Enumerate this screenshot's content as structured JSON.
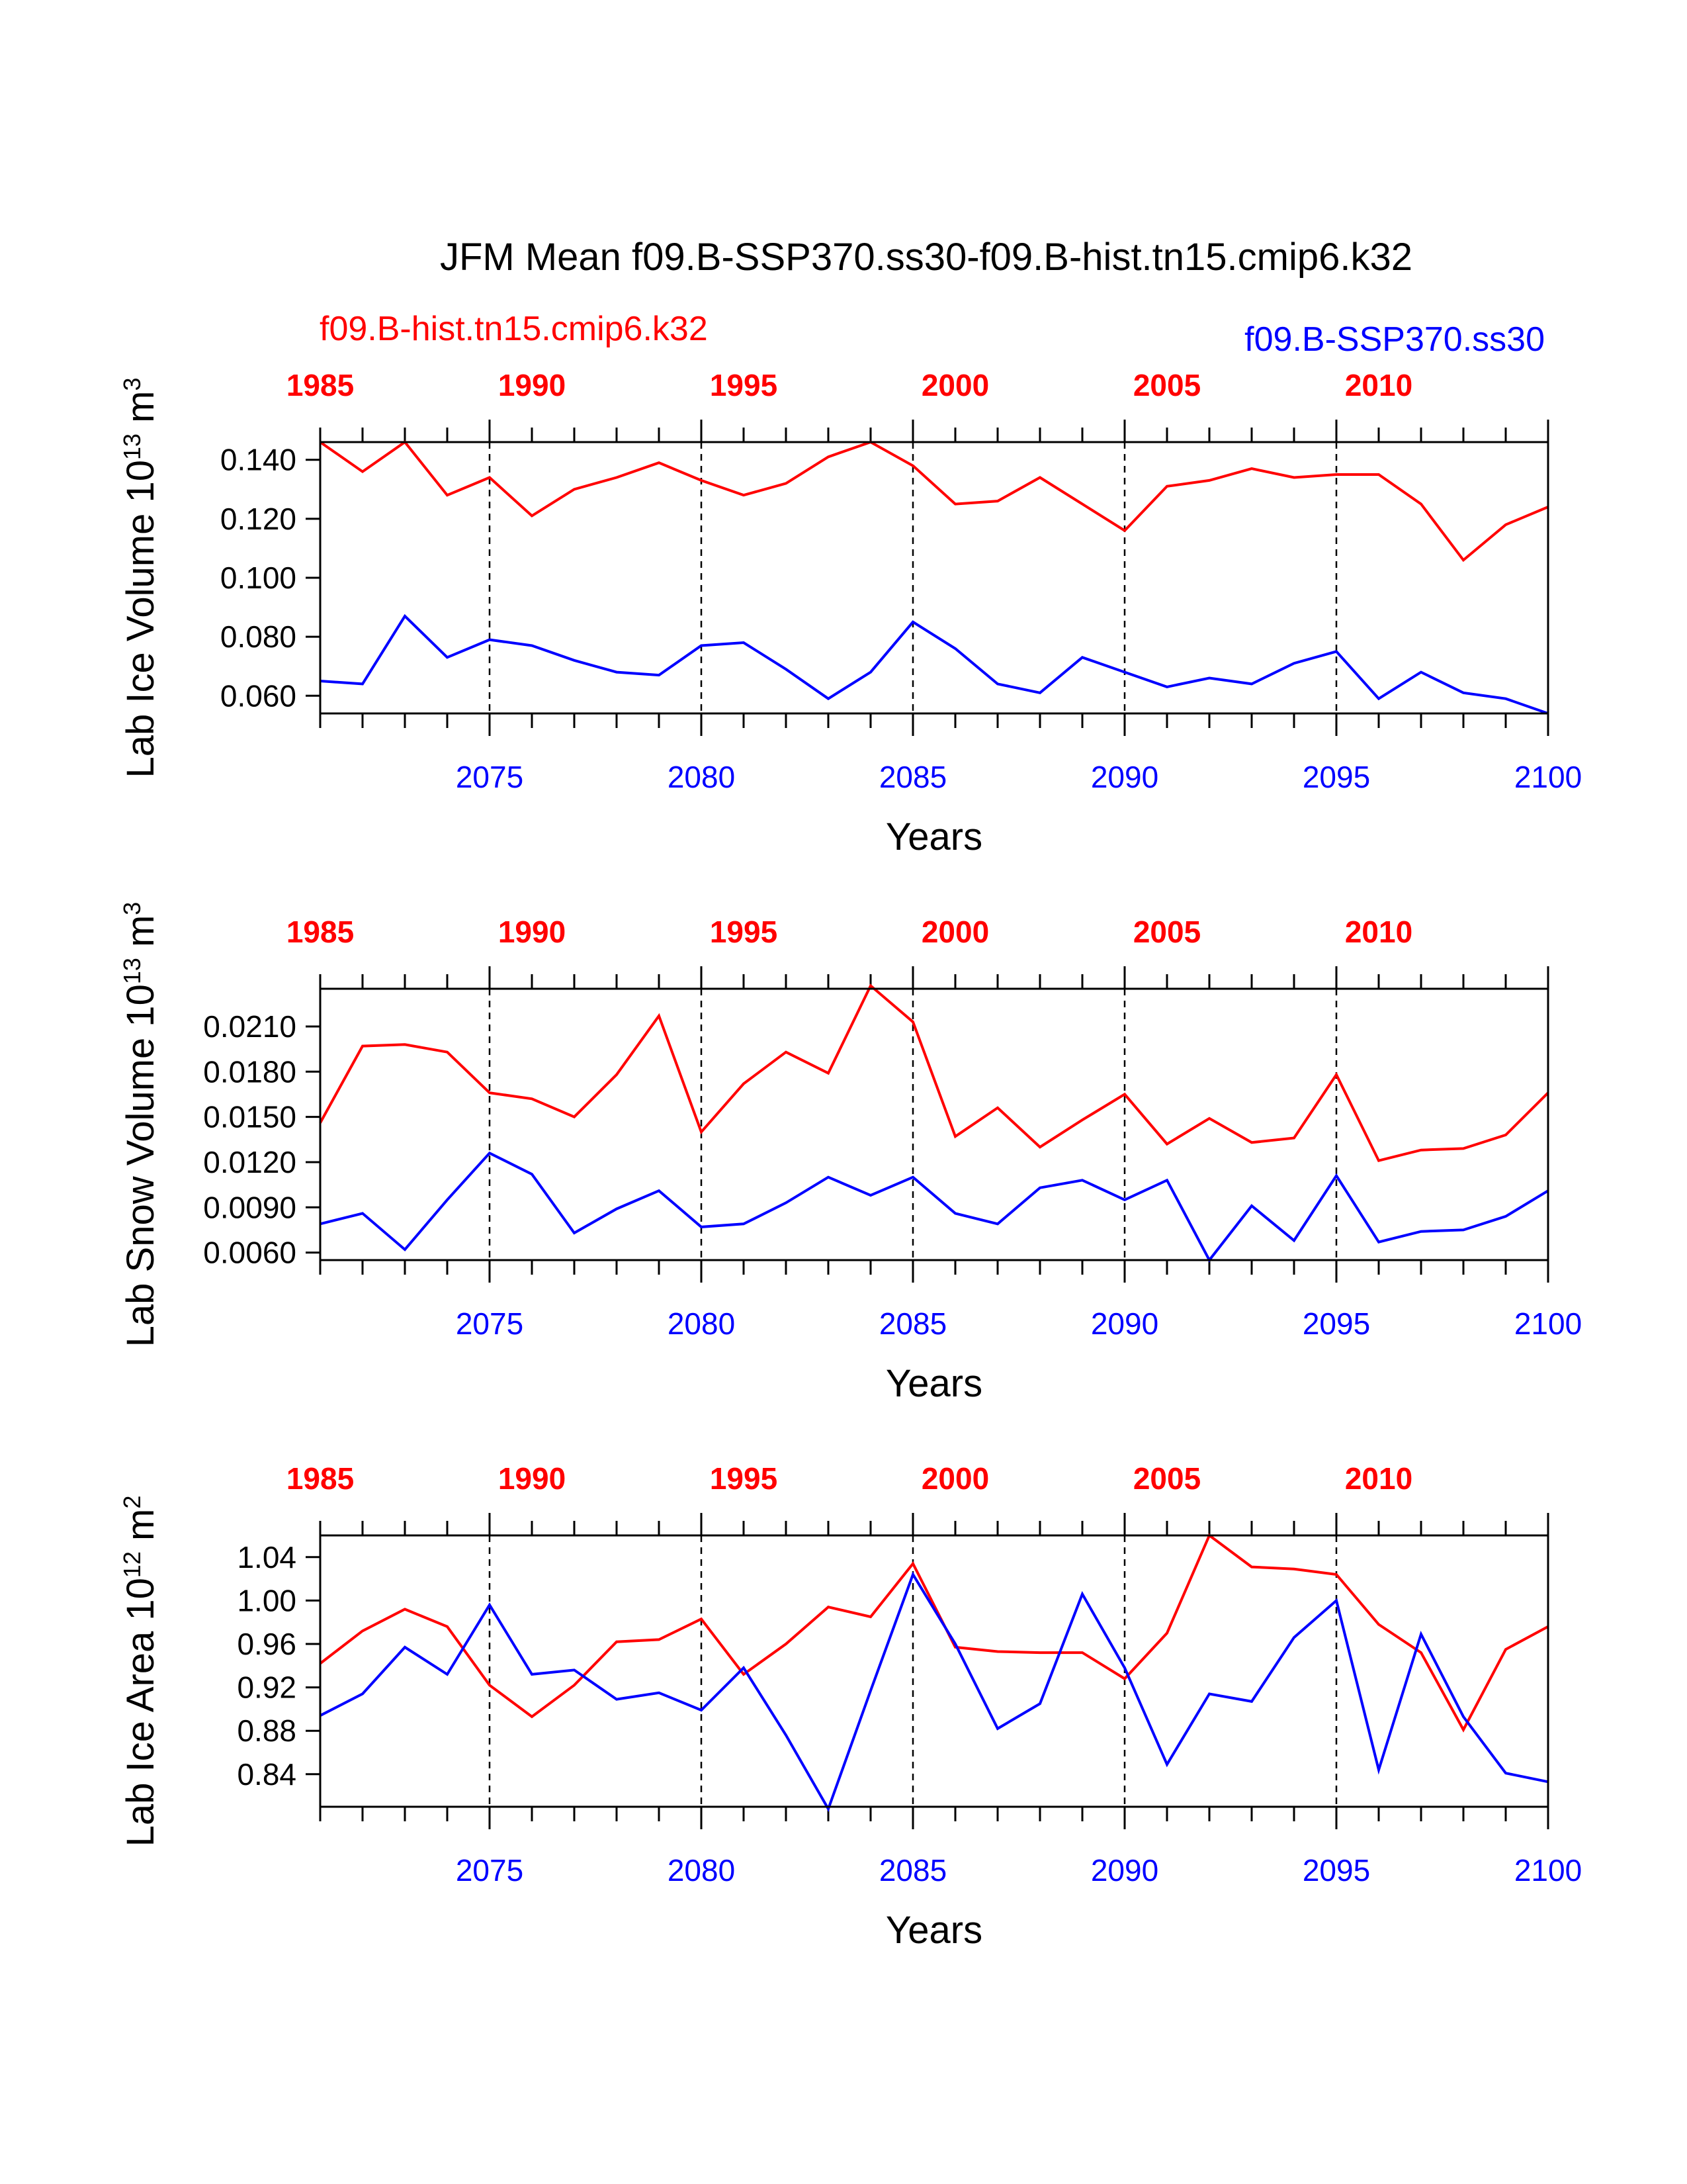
{
  "title": "JFM Mean f09.B-SSP370.ss30-f09.B-hist.tn15.cmip6.k32",
  "colors": {
    "hist": "#ff0000",
    "ssp": "#0000ff",
    "axis": "#000000"
  },
  "series_labels": {
    "hist": "f09.B-hist.tn15.cmip6.k32",
    "ssp": "f09.B-SSP370.ss30"
  },
  "chart_data": [
    {
      "type": "line",
      "ylabel": "Lab Ice Volume 10",
      "ylabel_exp": "13",
      "ylabel_unit": " m",
      "ylabel_unit_exp": "3",
      "xlabel": "Years",
      "x": [
        2071,
        2072,
        2073,
        2074,
        2075,
        2076,
        2077,
        2078,
        2079,
        2080,
        2081,
        2082,
        2083,
        2084,
        2085,
        2086,
        2087,
        2088,
        2089,
        2090,
        2091,
        2092,
        2093,
        2094,
        2095,
        2096,
        2097,
        2098,
        2099,
        2100
      ],
      "xlim": [
        2071,
        2100
      ],
      "ylim": [
        0.054,
        0.146
      ],
      "yticks": [
        0.06,
        0.08,
        0.1,
        0.12,
        0.14
      ],
      "ytick_labels": [
        "0.060",
        "0.080",
        "0.100",
        "0.120",
        "0.140"
      ],
      "bottom_ticks": [
        2075,
        2080,
        2085,
        2090,
        2095,
        2100
      ],
      "bottom_tick_labels": [
        "2075",
        "2080",
        "2085",
        "2090",
        "2095",
        "2100"
      ],
      "top_ticks": [
        1985,
        1990,
        1995,
        2000,
        2005,
        2010
      ],
      "top_tick_labels": [
        "1985",
        "1990",
        "1995",
        "2000",
        "2005",
        "2010"
      ],
      "top_xlim": [
        1985,
        2014
      ],
      "gridlines_x": [
        2075,
        2080,
        2085,
        2090,
        2095
      ],
      "series": [
        {
          "name": "f09.B-hist.tn15.cmip6.k32",
          "key": "hist",
          "years": [
            1985,
            1986,
            1987,
            1988,
            1989,
            1990,
            1991,
            1992,
            1993,
            1994,
            1995,
            1996,
            1997,
            1998,
            1999,
            2000,
            2001,
            2002,
            2003,
            2004,
            2005,
            2006,
            2007,
            2008,
            2009,
            2010,
            2011,
            2012,
            2013,
            2014
          ],
          "values": [
            0.146,
            0.136,
            0.146,
            0.128,
            0.134,
            0.121,
            0.13,
            0.134,
            0.139,
            0.133,
            0.128,
            0.132,
            0.141,
            0.146,
            0.138,
            0.125,
            0.126,
            0.134,
            0.125,
            0.116,
            0.131,
            0.133,
            0.137,
            0.134,
            0.135,
            0.135,
            0.125,
            0.106,
            0.118,
            0.124
          ]
        },
        {
          "name": "f09.B-SSP370.ss30",
          "key": "ssp",
          "years": [
            2071,
            2072,
            2073,
            2074,
            2075,
            2076,
            2077,
            2078,
            2079,
            2080,
            2081,
            2082,
            2083,
            2084,
            2085,
            2086,
            2087,
            2088,
            2089,
            2090,
            2091,
            2092,
            2093,
            2094,
            2095,
            2096,
            2097,
            2098,
            2099,
            2100
          ],
          "values": [
            0.065,
            0.064,
            0.087,
            0.073,
            0.079,
            0.077,
            0.072,
            0.068,
            0.067,
            0.077,
            0.078,
            0.069,
            0.059,
            0.068,
            0.085,
            0.076,
            0.064,
            0.061,
            0.073,
            0.068,
            0.063,
            0.066,
            0.064,
            0.071,
            0.075,
            0.059,
            0.068,
            0.061,
            0.059,
            0.054
          ]
        }
      ]
    },
    {
      "type": "line",
      "ylabel": "Lab Snow Volume 10",
      "ylabel_exp": "13",
      "ylabel_unit": " m",
      "ylabel_unit_exp": "3",
      "xlabel": "Years",
      "x": [
        2071,
        2072,
        2073,
        2074,
        2075,
        2076,
        2077,
        2078,
        2079,
        2080,
        2081,
        2082,
        2083,
        2084,
        2085,
        2086,
        2087,
        2088,
        2089,
        2090,
        2091,
        2092,
        2093,
        2094,
        2095,
        2096,
        2097,
        2098,
        2099,
        2100
      ],
      "xlim": [
        2071,
        2100
      ],
      "ylim": [
        0.0055,
        0.0235
      ],
      "yticks": [
        0.006,
        0.009,
        0.012,
        0.015,
        0.018,
        0.021
      ],
      "ytick_labels": [
        "0.0060",
        "0.0090",
        "0.0120",
        "0.0150",
        "0.0180",
        "0.0210"
      ],
      "bottom_ticks": [
        2075,
        2080,
        2085,
        2090,
        2095,
        2100
      ],
      "bottom_tick_labels": [
        "2075",
        "2080",
        "2085",
        "2090",
        "2095",
        "2100"
      ],
      "top_ticks": [
        1985,
        1990,
        1995,
        2000,
        2005,
        2010
      ],
      "top_tick_labels": [
        "1985",
        "1990",
        "1995",
        "2000",
        "2005",
        "2010"
      ],
      "top_xlim": [
        1985,
        2014
      ],
      "gridlines_x": [
        2075,
        2080,
        2085,
        2090,
        2095
      ],
      "series": [
        {
          "name": "f09.B-hist.tn15.cmip6.k32",
          "key": "hist",
          "years": [
            1985,
            1986,
            1987,
            1988,
            1989,
            1990,
            1991,
            1992,
            1993,
            1994,
            1995,
            1996,
            1997,
            1998,
            1999,
            2000,
            2001,
            2002,
            2003,
            2004,
            2005,
            2006,
            2007,
            2008,
            2009,
            2010,
            2011,
            2012,
            2013,
            2014
          ],
          "values": [
            0.0146,
            0.0197,
            0.0198,
            0.0193,
            0.0166,
            0.0162,
            0.015,
            0.0178,
            0.0217,
            0.014,
            0.0172,
            0.0193,
            0.0179,
            0.0237,
            0.0213,
            0.0137,
            0.0156,
            0.013,
            0.0148,
            0.0165,
            0.0132,
            0.0149,
            0.0133,
            0.0136,
            0.0178,
            0.0121,
            0.0128,
            0.0129,
            0.0138,
            0.0166
          ]
        },
        {
          "name": "f09.B-SSP370.ss30",
          "key": "ssp",
          "years": [
            2071,
            2072,
            2073,
            2074,
            2075,
            2076,
            2077,
            2078,
            2079,
            2080,
            2081,
            2082,
            2083,
            2084,
            2085,
            2086,
            2087,
            2088,
            2089,
            2090,
            2091,
            2092,
            2093,
            2094,
            2095,
            2096,
            2097,
            2098,
            2099,
            2100
          ],
          "values": [
            0.0079,
            0.0086,
            0.0062,
            0.0095,
            0.0126,
            0.0112,
            0.0073,
            0.0089,
            0.0101,
            0.0077,
            0.0079,
            0.0093,
            0.011,
            0.0098,
            0.011,
            0.0086,
            0.0079,
            0.0103,
            0.0108,
            0.0095,
            0.0108,
            0.0055,
            0.0091,
            0.0068,
            0.0111,
            0.0067,
            0.0074,
            0.0075,
            0.0084,
            0.0101
          ]
        }
      ]
    },
    {
      "type": "line",
      "ylabel": "Lab Ice Area 10",
      "ylabel_exp": "12",
      "ylabel_unit": " m",
      "ylabel_unit_exp": "2",
      "xlabel": "Years",
      "x": [
        2071,
        2072,
        2073,
        2074,
        2075,
        2076,
        2077,
        2078,
        2079,
        2080,
        2081,
        2082,
        2083,
        2084,
        2085,
        2086,
        2087,
        2088,
        2089,
        2090,
        2091,
        2092,
        2093,
        2094,
        2095,
        2096,
        2097,
        2098,
        2099,
        2100
      ],
      "xlim": [
        2071,
        2100
      ],
      "ylim": [
        0.81,
        1.06
      ],
      "yticks": [
        0.84,
        0.88,
        0.92,
        0.96,
        1.0,
        1.04
      ],
      "ytick_labels": [
        "0.84",
        "0.88",
        "0.92",
        "0.96",
        "1.00",
        "1.04"
      ],
      "bottom_ticks": [
        2075,
        2080,
        2085,
        2090,
        2095,
        2100
      ],
      "bottom_tick_labels": [
        "2075",
        "2080",
        "2085",
        "2090",
        "2095",
        "2100"
      ],
      "top_ticks": [
        1985,
        1990,
        1995,
        2000,
        2005,
        2010
      ],
      "top_tick_labels": [
        "1985",
        "1990",
        "1995",
        "2000",
        "2005",
        "2010"
      ],
      "top_xlim": [
        1985,
        2014
      ],
      "gridlines_x": [
        2075,
        2080,
        2085,
        2090,
        2095
      ],
      "series": [
        {
          "name": "f09.B-hist.tn15.cmip6.k32",
          "key": "hist",
          "years": [
            1985,
            1986,
            1987,
            1988,
            1989,
            1990,
            1991,
            1992,
            1993,
            1994,
            1995,
            1996,
            1997,
            1998,
            1999,
            2000,
            2001,
            2002,
            2003,
            2004,
            2005,
            2006,
            2007,
            2008,
            2009,
            2010,
            2011,
            2012,
            2013,
            2014
          ],
          "values": [
            0.942,
            0.972,
            0.992,
            0.976,
            0.922,
            0.893,
            0.922,
            0.962,
            0.964,
            0.983,
            0.932,
            0.96,
            0.994,
            0.985,
            1.034,
            0.957,
            0.953,
            0.952,
            0.952,
            0.928,
            0.97,
            1.06,
            1.031,
            1.029,
            1.024,
            0.978,
            0.952,
            0.881,
            0.955,
            0.976
          ]
        },
        {
          "name": "f09.B-SSP370.ss30",
          "key": "ssp",
          "years": [
            2071,
            2072,
            2073,
            2074,
            2075,
            2076,
            2077,
            2078,
            2079,
            2080,
            2081,
            2082,
            2083,
            2084,
            2085,
            2086,
            2087,
            2088,
            2089,
            2090,
            2091,
            2092,
            2093,
            2094,
            2095,
            2096,
            2097,
            2098,
            2099,
            2100
          ],
          "values": [
            0.894,
            0.914,
            0.957,
            0.932,
            0.996,
            0.932,
            0.936,
            0.909,
            0.915,
            0.899,
            0.938,
            0.876,
            0.808,
            0.917,
            1.024,
            0.96,
            0.882,
            0.905,
            1.006,
            0.938,
            0.849,
            0.914,
            0.907,
            0.966,
            1.0,
            0.844,
            0.969,
            0.893,
            0.841,
            0.833
          ]
        }
      ]
    }
  ]
}
